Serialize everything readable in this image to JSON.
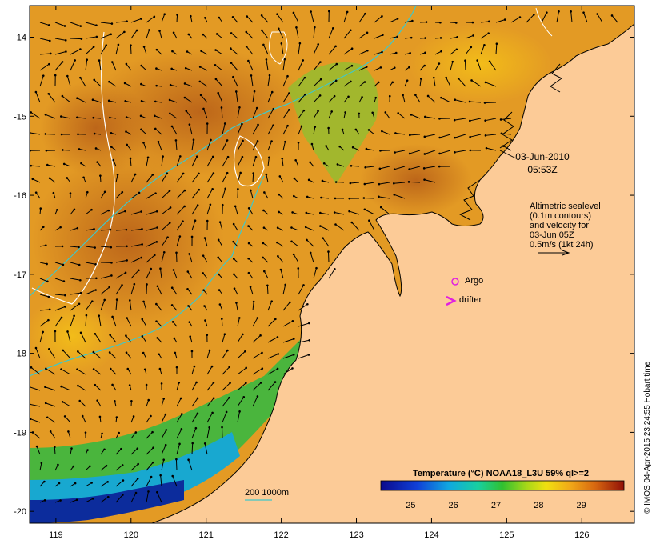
{
  "map": {
    "date": "03-Jun-2010",
    "time": "05:53Z",
    "lon_ticks": [
      "119",
      "120",
      "121",
      "122",
      "123",
      "124",
      "125",
      "126"
    ],
    "lat_ticks": [
      "-14",
      "-15",
      "-16",
      "-17",
      "-18",
      "-19",
      "-20"
    ],
    "lon_range": [
      118.65,
      126.7
    ],
    "lat_range": [
      -20.15,
      -13.6
    ]
  },
  "altimetry": {
    "lines": [
      "Altimetric sealevel",
      "(0.1m contours)",
      "and velocity for",
      "03-Jun 05Z",
      "0.5m/s (1kt 24h)"
    ]
  },
  "legend": {
    "argo_label": "Argo",
    "drifter_label": "drifter",
    "depth_label": "200  1000m"
  },
  "colorbar": {
    "title": "Temperature (°C) NOAA18_L3U 59% ql>=2",
    "ticks": [
      "25",
      "26",
      "27",
      "28",
      "29"
    ]
  },
  "credit": "© IMOS 04-Apr-2015 23:24:55 Hobart time",
  "colors": {
    "land": "#fccb97",
    "warm_sea": "#e59a22",
    "argo": "#e020e0",
    "contour_white": "#ffffff",
    "isobath": "#40c8c8"
  }
}
